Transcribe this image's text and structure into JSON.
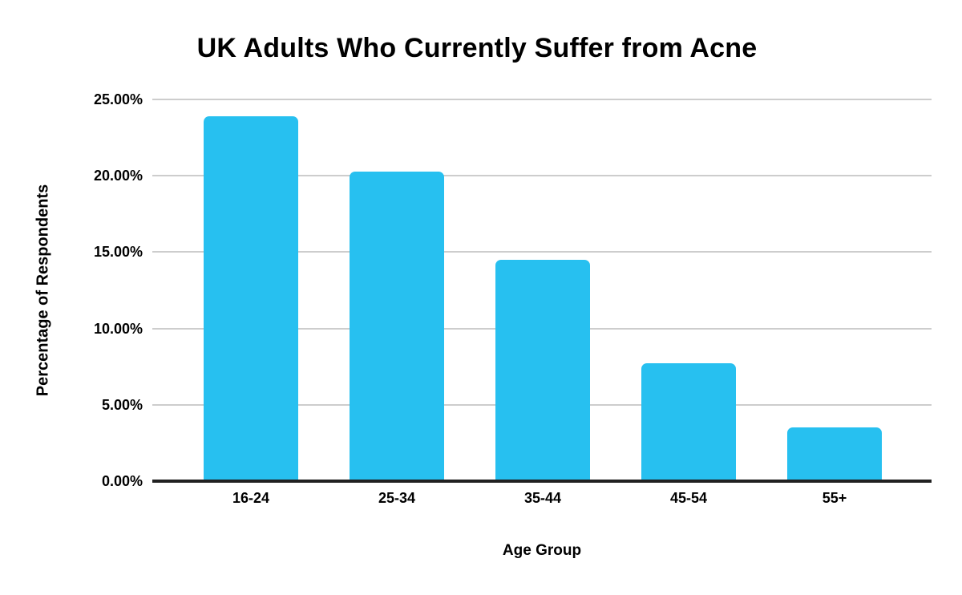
{
  "chart_data": {
    "type": "bar",
    "title": "UK Adults Who Currently Suffer from Acne",
    "xlabel": "Age Group",
    "ylabel": "Percentage of Respondents",
    "categories": [
      "16-24",
      "25-34",
      "35-44",
      "45-54",
      "55+"
    ],
    "values": [
      23.9,
      20.3,
      14.5,
      7.7,
      3.5
    ],
    "value_unit": "%",
    "ylim": [
      0,
      25
    ],
    "ytick_step": 5,
    "ytick_labels": [
      "0.00%",
      "5.00%",
      "10.00%",
      "15.00%",
      "20.00%",
      "25.00%"
    ],
    "grid": true,
    "legend": "none",
    "bar_color": "#27C0F0",
    "gridline_color": "#cdcdcd",
    "axis_line_color": "#212121",
    "text_color": "#000000",
    "background_color": "#ffffff"
  }
}
